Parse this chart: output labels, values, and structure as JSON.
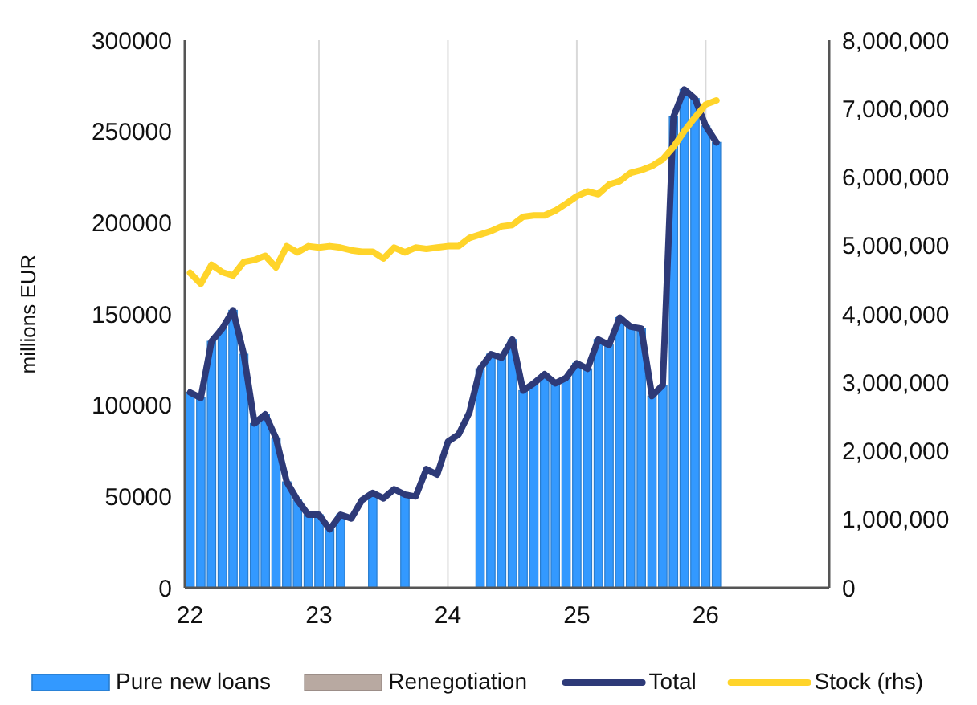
{
  "chart_data": {
    "type": "bar",
    "ylabel": "millions EUR",
    "grid": "x",
    "legend": "bottom",
    "categories": [
      "22",
      null,
      null,
      null,
      null,
      null,
      null,
      null,
      null,
      null,
      null,
      null,
      "23",
      null,
      null,
      null,
      null,
      null,
      null,
      null,
      null,
      null,
      null,
      null,
      "24",
      null,
      null,
      null,
      null,
      null,
      null,
      null,
      null,
      null,
      null,
      null,
      "25",
      null,
      null,
      null,
      null,
      null,
      null,
      null,
      null,
      null,
      null,
      null,
      "26",
      null,
      null,
      null,
      null,
      null,
      null,
      null,
      null,
      null,
      null,
      null
    ],
    "ylim": [
      0,
      300000
    ],
    "yticks": [
      0,
      50000,
      100000,
      150000,
      200000,
      250000,
      300000
    ],
    "y2lim": [
      0,
      8000000
    ],
    "y2ticks": [
      0,
      {
        "value": 1000000,
        "label": "1,000,000"
      },
      {
        "value": 2000000,
        "label": "2,000,000"
      },
      {
        "value": 3000000,
        "label": "3,000,000"
      },
      {
        "value": 4000000,
        "label": "4,000,000"
      },
      {
        "value": 5000000,
        "label": "5,000,000"
      },
      {
        "value": 6000000,
        "label": "6,000,000"
      },
      {
        "value": 7000000,
        "label": "7,000,000"
      },
      {
        "value": 8000000,
        "label": "8,000,000"
      }
    ],
    "series": [
      {
        "name": "Pure new loans",
        "color": "#3399ff",
        "values": [
          107000,
          104000,
          135000,
          142000,
          152000,
          128000,
          90000,
          95000,
          82000,
          58000,
          48000,
          40000,
          40000,
          32000,
          40000,
          null,
          null,
          52000,
          null,
          null,
          51000,
          null,
          null,
          null,
          null,
          null,
          null,
          120000,
          128000,
          126000,
          136000,
          108000,
          112000,
          117000,
          112000,
          115000,
          123000,
          120000,
          136000,
          133000,
          148000,
          143000,
          142000,
          105000,
          111000,
          258000,
          273000,
          268000,
          253000,
          244000,
          null,
          null,
          null,
          null,
          null,
          null,
          null,
          null,
          null,
          null
        ]
      },
      {
        "name": "Renegotiation",
        "color": "#b8a9a1",
        "values": [
          0,
          0,
          0,
          0,
          0,
          0,
          0,
          0,
          0,
          0,
          0,
          0,
          0,
          0,
          0,
          0,
          0,
          0,
          0,
          0,
          0,
          0,
          0,
          0,
          0,
          0,
          0,
          0,
          0,
          0,
          0,
          0,
          0,
          0,
          0,
          0,
          0,
          0,
          0,
          0,
          0,
          0,
          0,
          0,
          0,
          0,
          0,
          0,
          0,
          0,
          null,
          null,
          null,
          null,
          null,
          null,
          null,
          null,
          null,
          null
        ]
      },
      {
        "name": "Total",
        "type": "line",
        "color": "#2e3a78",
        "values": [
          107000,
          104000,
          135000,
          142000,
          152000,
          128000,
          90000,
          95000,
          82000,
          58000,
          48000,
          40000,
          40000,
          32000,
          40000,
          38000,
          48000,
          52000,
          49000,
          54000,
          51000,
          50000,
          65000,
          62000,
          80000,
          84000,
          96000,
          120000,
          128000,
          126000,
          136000,
          108000,
          112000,
          117000,
          112000,
          115000,
          123000,
          120000,
          136000,
          133000,
          148000,
          143000,
          142000,
          105000,
          111000,
          258000,
          273000,
          268000,
          253000,
          244000,
          null,
          null,
          null,
          null,
          null,
          null,
          null,
          null,
          null,
          null
        ]
      },
      {
        "name": "Stock (rhs)",
        "type": "line",
        "axis": "y2",
        "color": "#ffd42a",
        "values": [
          4600000,
          4440000,
          4720000,
          4610000,
          4560000,
          4760000,
          4790000,
          4850000,
          4680000,
          4990000,
          4900000,
          4990000,
          4970000,
          4990000,
          4970000,
          4930000,
          4910000,
          4910000,
          4810000,
          4970000,
          4900000,
          4970000,
          4950000,
          4970000,
          4990000,
          4990000,
          5110000,
          5160000,
          5210000,
          5280000,
          5300000,
          5420000,
          5440000,
          5440000,
          5510000,
          5610000,
          5720000,
          5790000,
          5750000,
          5890000,
          5940000,
          6060000,
          6100000,
          6160000,
          6260000,
          6440000,
          6670000,
          6870000,
          7060000,
          7120000,
          null,
          null,
          null,
          null,
          null,
          null,
          null,
          null,
          null,
          null
        ]
      }
    ]
  }
}
